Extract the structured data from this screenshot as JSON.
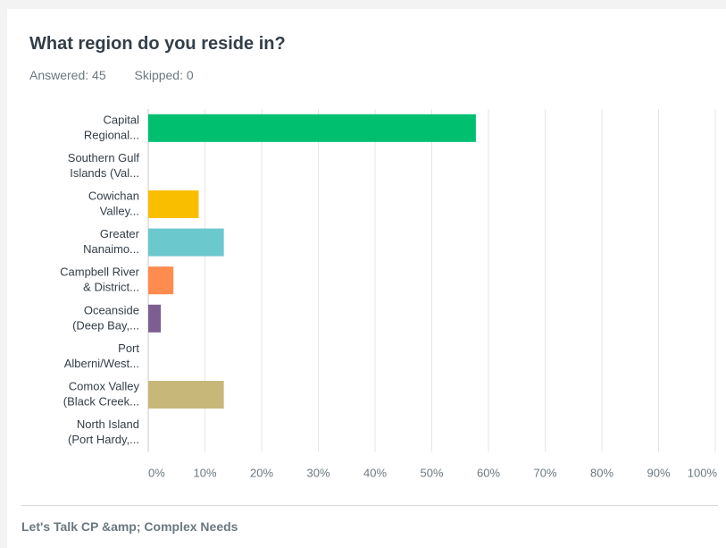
{
  "header": {
    "title": "What region do you reside in?",
    "answered": "Answered: 45",
    "skipped": "Skipped: 0"
  },
  "footer": {
    "text": "Let's Talk CP &amp; Complex Needs"
  },
  "chart_data": {
    "type": "bar",
    "orientation": "horizontal",
    "categories": [
      [
        "Capital",
        "Regional..."
      ],
      [
        "Southern Gulf",
        "Islands (Val..."
      ],
      [
        "Cowichan",
        "Valley..."
      ],
      [
        "Greater",
        "Nanaimo..."
      ],
      [
        "Campbell River",
        "& District..."
      ],
      [
        "Oceanside",
        "(Deep Bay,..."
      ],
      [
        "Port",
        "Alberni/West..."
      ],
      [
        "Comox Valley",
        "(Black Creek..."
      ],
      [
        "North Island",
        "(Port Hardy,..."
      ]
    ],
    "values": [
      57.78,
      0,
      8.89,
      13.33,
      4.44,
      2.22,
      0,
      13.33,
      0
    ],
    "colors": [
      "#00bf6f",
      "#507cb6",
      "#f9be00",
      "#6bc8cd",
      "#ff8b4f",
      "#7d5e90",
      "#d25f90",
      "#c7b879",
      "#a5a5a5"
    ],
    "xlim": [
      0,
      100
    ],
    "xticks": [
      "0%",
      "10%",
      "20%",
      "30%",
      "40%",
      "50%",
      "60%",
      "70%",
      "80%",
      "90%",
      "100%"
    ],
    "grid": true
  }
}
